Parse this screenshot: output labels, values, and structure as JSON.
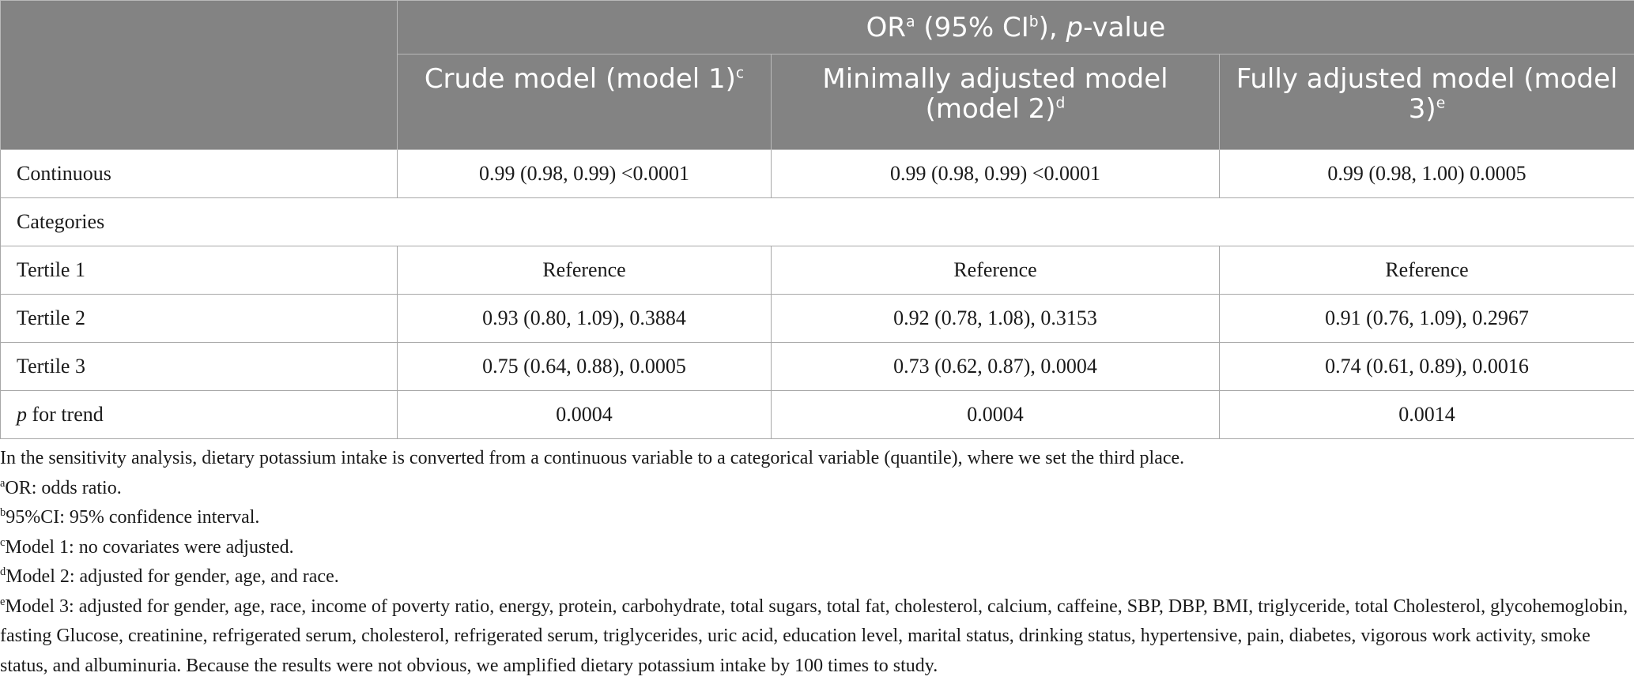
{
  "header": {
    "group_OR": "OR",
    "group_a": "a",
    "group_ci_open": " (95% CI",
    "group_b": "b",
    "group_ci_close": "), ",
    "group_p": "p",
    "group_value": "-value",
    "model1": "Crude model (model 1)",
    "model1_sup": "c",
    "model2": "Minimally adjusted model (model 2)",
    "model2_sup": "d",
    "model3": "Fully adjusted model (model 3)",
    "model3_sup": "e"
  },
  "rows": [
    {
      "label": "Continuous",
      "m1": "0.99 (0.98, 0.99) <0.0001",
      "m2": "0.99 (0.98, 0.99) <0.0001",
      "m3": "0.99 (0.98, 1.00) 0.0005"
    },
    {
      "label": "Categories"
    },
    {
      "label": "Tertile 1",
      "m1": "Reference",
      "m2": "Reference",
      "m3": "Reference"
    },
    {
      "label": "Tertile 2",
      "m1": "0.93 (0.80, 1.09), 0.3884",
      "m2": "0.92 (0.78, 1.08), 0.3153",
      "m3": "0.91 (0.76, 1.09), 0.2967"
    },
    {
      "label": "Tertile 3",
      "m1": "0.75 (0.64, 0.88), 0.0005",
      "m2": "0.73 (0.62, 0.87), 0.0004",
      "m3": "0.74 (0.61, 0.89), 0.0016"
    },
    {
      "label_italic": "p",
      "label_rest": " for trend",
      "m1": "0.0004",
      "m2": "0.0004",
      "m3": "0.0014"
    }
  ],
  "notes": {
    "intro": "In the sensitivity analysis, dietary potassium intake is converted from a continuous variable to a categorical variable (quantile), where we set the third place.",
    "a_mark": "a",
    "a_text": "OR: odds ratio.",
    "b_mark": "b",
    "b_text": "95%CI: 95% confidence interval.",
    "c_mark": "c",
    "c_text": "Model 1: no covariates were adjusted.",
    "d_mark": "d",
    "d_text": "Model 2: adjusted for gender, age, and race.",
    "e_mark": "e",
    "e_text": "Model 3: adjusted for gender, age, race, income of poverty ratio, energy, protein, carbohydrate, total sugars, total fat, cholesterol, calcium, caffeine, SBP, DBP, BMI, triglyceride, total Cholesterol, glycohemoglobin, fasting Glucose, creatinine, refrigerated serum, cholesterol, refrigerated serum, triglycerides, uric acid, education level, marital status, drinking status, hypertensive, pain, diabetes, vigorous work activity, smoke status, and albuminuria. Because the results were not obvious, we amplified dietary potassium intake by 100 times to study."
  }
}
